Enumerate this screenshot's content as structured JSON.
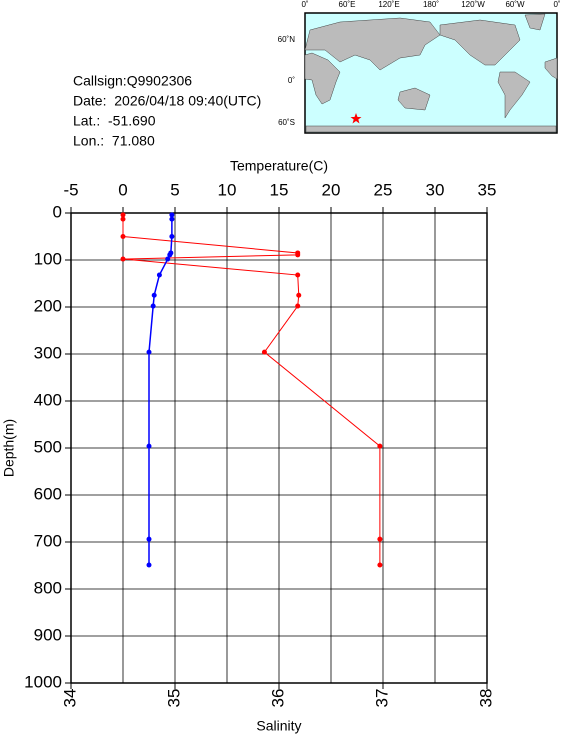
{
  "info": {
    "callsign": "Callsign:Q9902306",
    "date": "Date:  2026/04/18 09:40(UTC)",
    "lat": "Lat.:  -51.690",
    "lon": "Lon.:  71.080"
  },
  "map": {
    "lon_labels": [
      "0˚",
      "60˚E",
      "120˚E",
      "180˚",
      "120˚W",
      "60˚W",
      "0˚"
    ],
    "lat_labels": [
      "60˚N",
      "0˚",
      "60˚S"
    ]
  },
  "chart_data": {
    "type": "profile",
    "x2_label": "Temperature(C)",
    "x_label": "Salinity",
    "y_label": "Depth(m)",
    "depths": [
      4,
      13,
      50,
      85,
      89,
      98,
      132,
      175,
      198,
      296,
      496,
      694,
      749
    ],
    "series": [
      {
        "color": "#ff0000",
        "axis": "x2",
        "values": [
          0,
          0,
          0,
          16.8,
          16.8,
          0,
          16.8,
          16.9,
          16.8,
          13.6,
          24.7,
          24.7,
          24.7
        ]
      },
      {
        "color": "#0000ff",
        "values": [
          34.97,
          34.97,
          34.97,
          34.96,
          34.95,
          34.93,
          34.85,
          34.8,
          34.79,
          34.75,
          34.75,
          34.75,
          34.75
        ]
      }
    ],
    "xlim": [
      34,
      38
    ],
    "xticks": [
      34,
      35,
      36,
      37,
      38
    ],
    "x2lim": [
      -5,
      35
    ],
    "x2ticks": [
      -5,
      0,
      5,
      10,
      15,
      20,
      25,
      30,
      35
    ],
    "ylim": [
      1000,
      0
    ],
    "yticks": [
      0,
      100,
      200,
      300,
      400,
      500,
      600,
      700,
      800,
      900,
      1000
    ],
    "grid": true
  }
}
